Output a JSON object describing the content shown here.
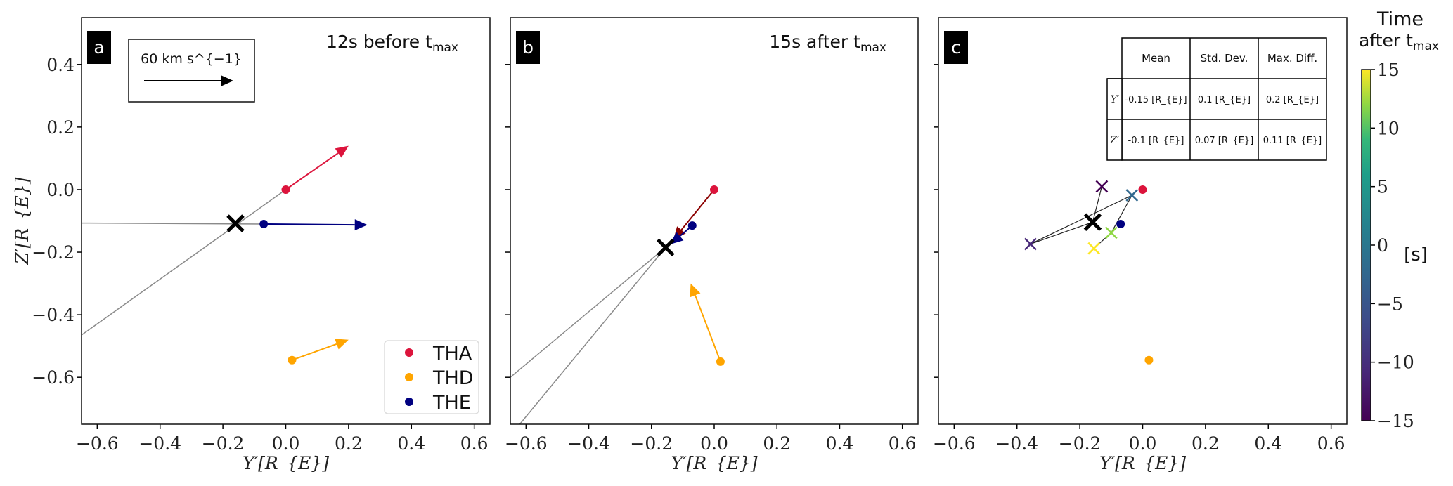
{
  "chart_data": [
    {
      "type": "scatter",
      "panel_label": "a",
      "title": "12s before t_{max}",
      "xlabel": "Y′[R_{E}]",
      "ylabel": "Z′[R_{E}]",
      "xlim": [
        -0.65,
        0.65
      ],
      "ylim": [
        -0.75,
        0.55
      ],
      "xticks": [
        -0.6,
        -0.4,
        -0.2,
        0.0,
        0.2,
        0.4,
        0.6
      ],
      "yticks": [
        0.4,
        0.2,
        0.0,
        -0.2,
        -0.4,
        -0.6
      ],
      "scale_arrow": {
        "label": "60 km s^{−1}"
      },
      "legend": {
        "placement": "lower-right",
        "entries": [
          {
            "name": "THA",
            "color": "#dc143c"
          },
          {
            "name": "THD",
            "color": "#ffa500"
          },
          {
            "name": "THE",
            "color": "#000080"
          }
        ]
      },
      "points": [
        {
          "name": "THA",
          "x": 0.0,
          "y": 0.0,
          "color": "#dc143c",
          "arrow_to": [
            0.2,
            0.14
          ]
        },
        {
          "name": "THD",
          "x": 0.02,
          "y": -0.545,
          "color": "#ffa500",
          "arrow_to": [
            0.2,
            -0.48
          ]
        },
        {
          "name": "THE",
          "x": -0.07,
          "y": -0.11,
          "color": "#000080",
          "arrow_to": [
            0.26,
            -0.113
          ]
        }
      ],
      "gray_lines": [
        [
          [
            -0.65,
            -0.107
          ],
          [
            -0.07,
            -0.11
          ]
        ],
        [
          [
            -0.65,
            -0.465
          ],
          [
            0.0,
            0.0
          ]
        ]
      ],
      "estimate": {
        "x": -0.16,
        "y": -0.108
      }
    },
    {
      "type": "scatter",
      "panel_label": "b",
      "title": "15s after t_{max}",
      "xlabel": "Y′[R_{E}]",
      "xlim": [
        -0.65,
        0.65
      ],
      "ylim": [
        -0.75,
        0.55
      ],
      "xticks": [
        -0.6,
        -0.4,
        -0.2,
        0.0,
        0.2,
        0.4,
        0.6
      ],
      "yticks": [
        0.4,
        0.2,
        0.0,
        -0.2,
        -0.4,
        -0.6
      ],
      "points": [
        {
          "name": "THA",
          "x": 0.0,
          "y": 0.0,
          "color": "#dc143c",
          "arrow_color": "#8b0000",
          "arrow_to": [
            -0.13,
            -0.16
          ]
        },
        {
          "name": "THD",
          "x": 0.02,
          "y": -0.55,
          "color": "#ffa500",
          "arrow_to": [
            -0.075,
            -0.3
          ]
        },
        {
          "name": "THE",
          "x": -0.07,
          "y": -0.115,
          "color": "#000080",
          "arrow_to": [
            -0.14,
            -0.175
          ]
        }
      ],
      "gray_lines": [
        [
          [
            -0.155,
            -0.185
          ],
          [
            -0.65,
            -0.6
          ]
        ],
        [
          [
            -0.155,
            -0.185
          ],
          [
            -0.62,
            -0.75
          ]
        ]
      ],
      "estimate": {
        "x": -0.155,
        "y": -0.185
      }
    },
    {
      "type": "scatter",
      "panel_label": "c",
      "xlabel": "Y′[R_{E}]",
      "xlim": [
        -0.65,
        0.65
      ],
      "ylim": [
        -0.75,
        0.55
      ],
      "xticks": [
        -0.6,
        -0.4,
        -0.2,
        0.0,
        0.2,
        0.4,
        0.6
      ],
      "yticks": [
        0.4,
        0.2,
        0.0,
        -0.2,
        -0.4,
        -0.6
      ],
      "points": [
        {
          "name": "THA",
          "x": 0.0,
          "y": 0.0,
          "color": "#dc143c"
        },
        {
          "name": "THD",
          "x": 0.02,
          "y": -0.545,
          "color": "#ffa500"
        },
        {
          "name": "THE",
          "x": -0.07,
          "y": -0.11,
          "color": "#000080"
        }
      ],
      "track": [
        {
          "x": -0.13,
          "y": 0.01,
          "t": -15
        },
        {
          "x": -0.159,
          "y": -0.104,
          "t": null
        },
        {
          "x": -0.357,
          "y": -0.174,
          "t": -10
        },
        {
          "x": -0.034,
          "y": -0.018,
          "t": -5
        },
        {
          "x": -0.1,
          "y": -0.138,
          "t": 10
        },
        {
          "x": -0.155,
          "y": -0.188,
          "t": 15
        }
      ],
      "estimate": {
        "x": -0.159,
        "y": -0.104
      },
      "table": {
        "columns": [
          "Mean",
          "Std. Dev.",
          "Max. Diff."
        ],
        "rows": [
          {
            "label": "Y′",
            "cells": [
              "-0.15 [R_{E}]",
              "0.1 [R_{E}]",
              "0.2 [R_{E}]"
            ]
          },
          {
            "label": "Z′",
            "cells": [
              "-0.1 [R_{E}]",
              "0.07 [R_{E}]",
              "0.11 [R_{E}]"
            ]
          }
        ]
      },
      "colorbar": {
        "title_line1": "Time",
        "title_line2": "after t_{max}",
        "unit": "[s]",
        "range": [
          -15,
          15
        ],
        "ticks": [
          15,
          10,
          5,
          0,
          -5,
          -10,
          -15
        ],
        "colormap": "viridis"
      }
    }
  ]
}
